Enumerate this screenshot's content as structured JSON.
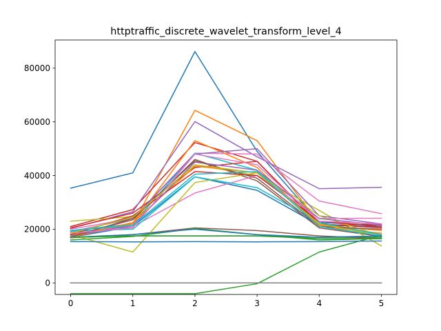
{
  "chart_data": {
    "type": "line",
    "title": "httptraffic_discrete_wavelet_transform_level_4",
    "xlabel": "",
    "ylabel": "",
    "x": [
      0,
      1,
      2,
      3,
      4,
      5
    ],
    "xlim": [
      -0.25,
      5.25
    ],
    "ylim": [
      -4300,
      90500
    ],
    "xticks": [
      0,
      1,
      2,
      3,
      4,
      5
    ],
    "yticks": [
      0,
      20000,
      40000,
      60000,
      80000
    ],
    "ytick_labels": [
      "0",
      "20000",
      "40000",
      "60000",
      "80000"
    ],
    "grid": false,
    "legend": "none",
    "series": [
      {
        "color": "#1f77b4",
        "values": [
          35300,
          41000,
          86200,
          49000,
          22500,
          21500
        ]
      },
      {
        "color": "#ff7f0e",
        "values": [
          18000,
          22000,
          64300,
          53000,
          22000,
          18000
        ]
      },
      {
        "color": "#2ca02c",
        "values": [
          -4000,
          -4000,
          -4000,
          -300,
          11500,
          17800
        ]
      },
      {
        "color": "#d62728",
        "values": [
          21000,
          27300,
          52300,
          45300,
          21500,
          21800
        ]
      },
      {
        "color": "#9467bd",
        "values": [
          20300,
          26500,
          60100,
          47000,
          35100,
          35600
        ]
      },
      {
        "color": "#8c564b",
        "values": [
          17500,
          23500,
          46000,
          38000,
          20500,
          17300
        ]
      },
      {
        "color": "#e377c2",
        "values": [
          20000,
          24000,
          48300,
          48000,
          30500,
          25800
        ]
      },
      {
        "color": "#7f7f7f",
        "values": [
          0,
          0,
          0,
          0,
          0,
          0
        ]
      },
      {
        "color": "#bcbd22",
        "values": [
          23000,
          24700,
          44000,
          40000,
          27000,
          13800
        ]
      },
      {
        "color": "#17becf",
        "values": [
          19500,
          22000,
          48300,
          42000,
          22000,
          20500
        ]
      },
      {
        "color": "#1f77b4",
        "values": [
          17000,
          21000,
          39500,
          34500,
          21500,
          21000
        ]
      },
      {
        "color": "#ff7f0e",
        "values": [
          17000,
          22000,
          53000,
          43000,
          21000,
          18500
        ]
      },
      {
        "color": "#2ca02c",
        "values": [
          17000,
          17500,
          17500,
          17500,
          17000,
          17000
        ]
      },
      {
        "color": "#d62728",
        "values": [
          20500,
          26000,
          43000,
          45300,
          22000,
          20500
        ]
      },
      {
        "color": "#9467bd",
        "values": [
          19000,
          24000,
          48000,
          50000,
          25000,
          22000
        ]
      },
      {
        "color": "#8c564b",
        "values": [
          16800,
          18000,
          20500,
          19500,
          17500,
          16500
        ]
      },
      {
        "color": "#e377c2",
        "values": [
          19000,
          21000,
          33500,
          40000,
          24000,
          24100
        ]
      },
      {
        "color": "#7f7f7f",
        "values": [
          0,
          0,
          0,
          0,
          0,
          0
        ]
      },
      {
        "color": "#bcbd22",
        "values": [
          18000,
          11500,
          37400,
          41000,
          25000,
          17500
        ]
      },
      {
        "color": "#17becf",
        "values": [
          19300,
          20000,
          39500,
          35500,
          22500,
          18000
        ]
      },
      {
        "color": "#1f77b4",
        "values": [
          15400,
          15300,
          15400,
          15300,
          15400,
          15600
        ]
      },
      {
        "color": "#ff7f0e",
        "values": [
          17500,
          22500,
          43500,
          41000,
          21500,
          19500
        ]
      },
      {
        "color": "#2ca02c",
        "values": [
          16000,
          17300,
          20300,
          18000,
          16000,
          16500
        ]
      },
      {
        "color": "#d62728",
        "values": [
          18000,
          25000,
          41500,
          40000,
          23000,
          21000
        ]
      },
      {
        "color": "#9467bd",
        "values": [
          17500,
          21500,
          45000,
          42000,
          24000,
          21500
        ]
      },
      {
        "color": "#8c564b",
        "values": [
          17000,
          24000,
          45500,
          39000,
          21000,
          20000
        ]
      },
      {
        "color": "#e377c2",
        "values": [
          18500,
          20500,
          48000,
          44000,
          23000,
          22000
        ]
      },
      {
        "color": "#7f7f7f",
        "values": [
          0,
          0,
          0,
          0,
          0,
          0
        ]
      },
      {
        "color": "#bcbd22",
        "values": [
          18500,
          24500,
          44000,
          41000,
          22000,
          17500
        ]
      },
      {
        "color": "#17becf",
        "values": [
          19500,
          21500,
          40500,
          41500,
          21000,
          17500
        ]
      },
      {
        "color": "#1f77b4",
        "values": [
          17000,
          18000,
          20000,
          18000,
          17000,
          17500
        ]
      },
      {
        "color": "#2ca02c",
        "values": [
          17000,
          17500,
          17500,
          17500,
          16500,
          16500
        ]
      }
    ]
  }
}
